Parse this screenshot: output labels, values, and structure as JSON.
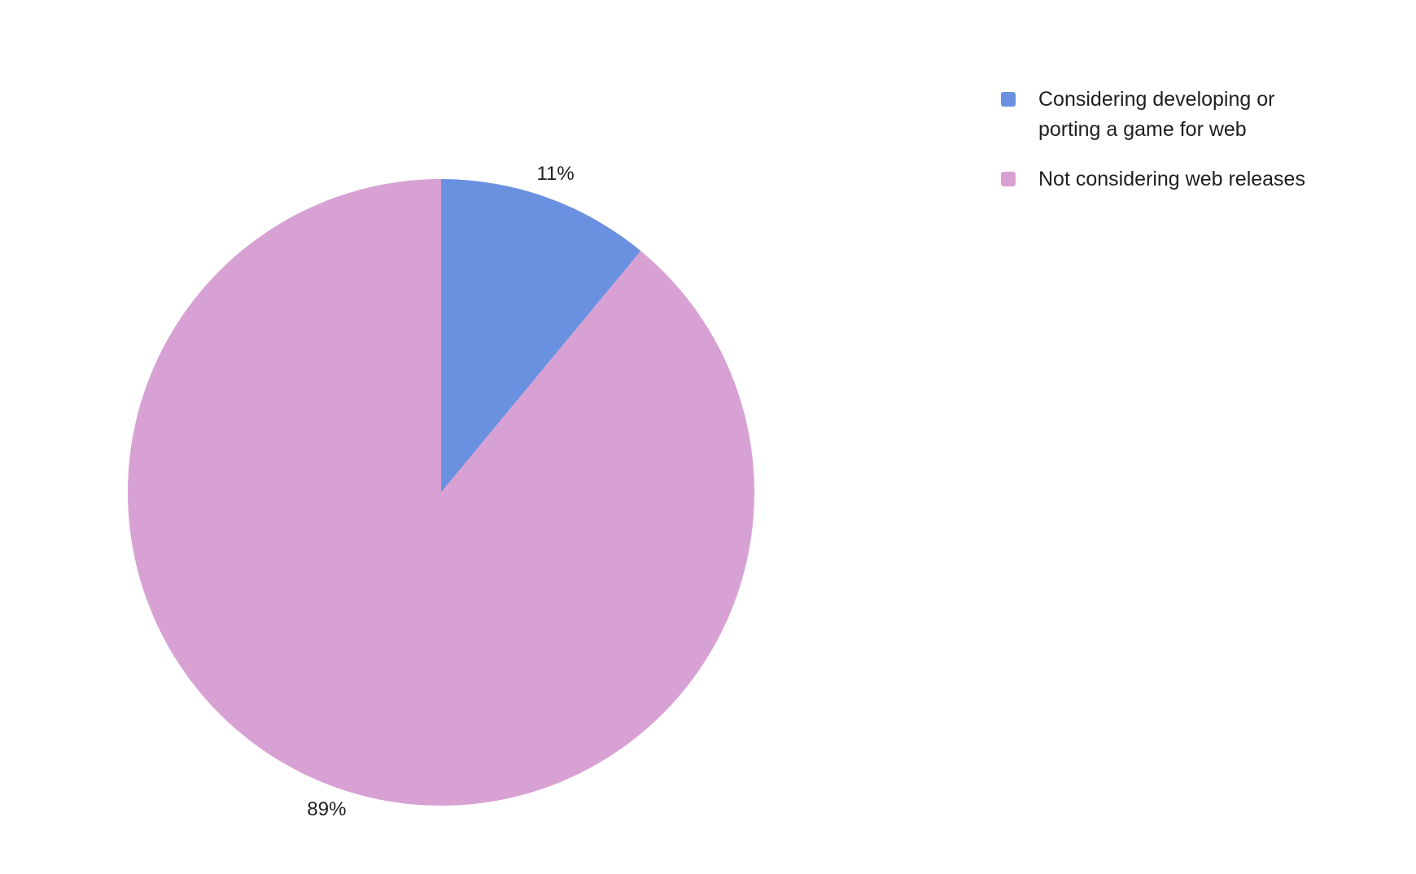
{
  "chart_data": {
    "type": "pie",
    "categories": [
      "Considering developing or porting a game for web",
      "Not considering web releases"
    ],
    "values": [
      11,
      89
    ],
    "value_labels": [
      "11%",
      "89%"
    ],
    "colors": [
      "#6a91e0",
      "#d8a1d4"
    ],
    "legend": "top-right"
  }
}
